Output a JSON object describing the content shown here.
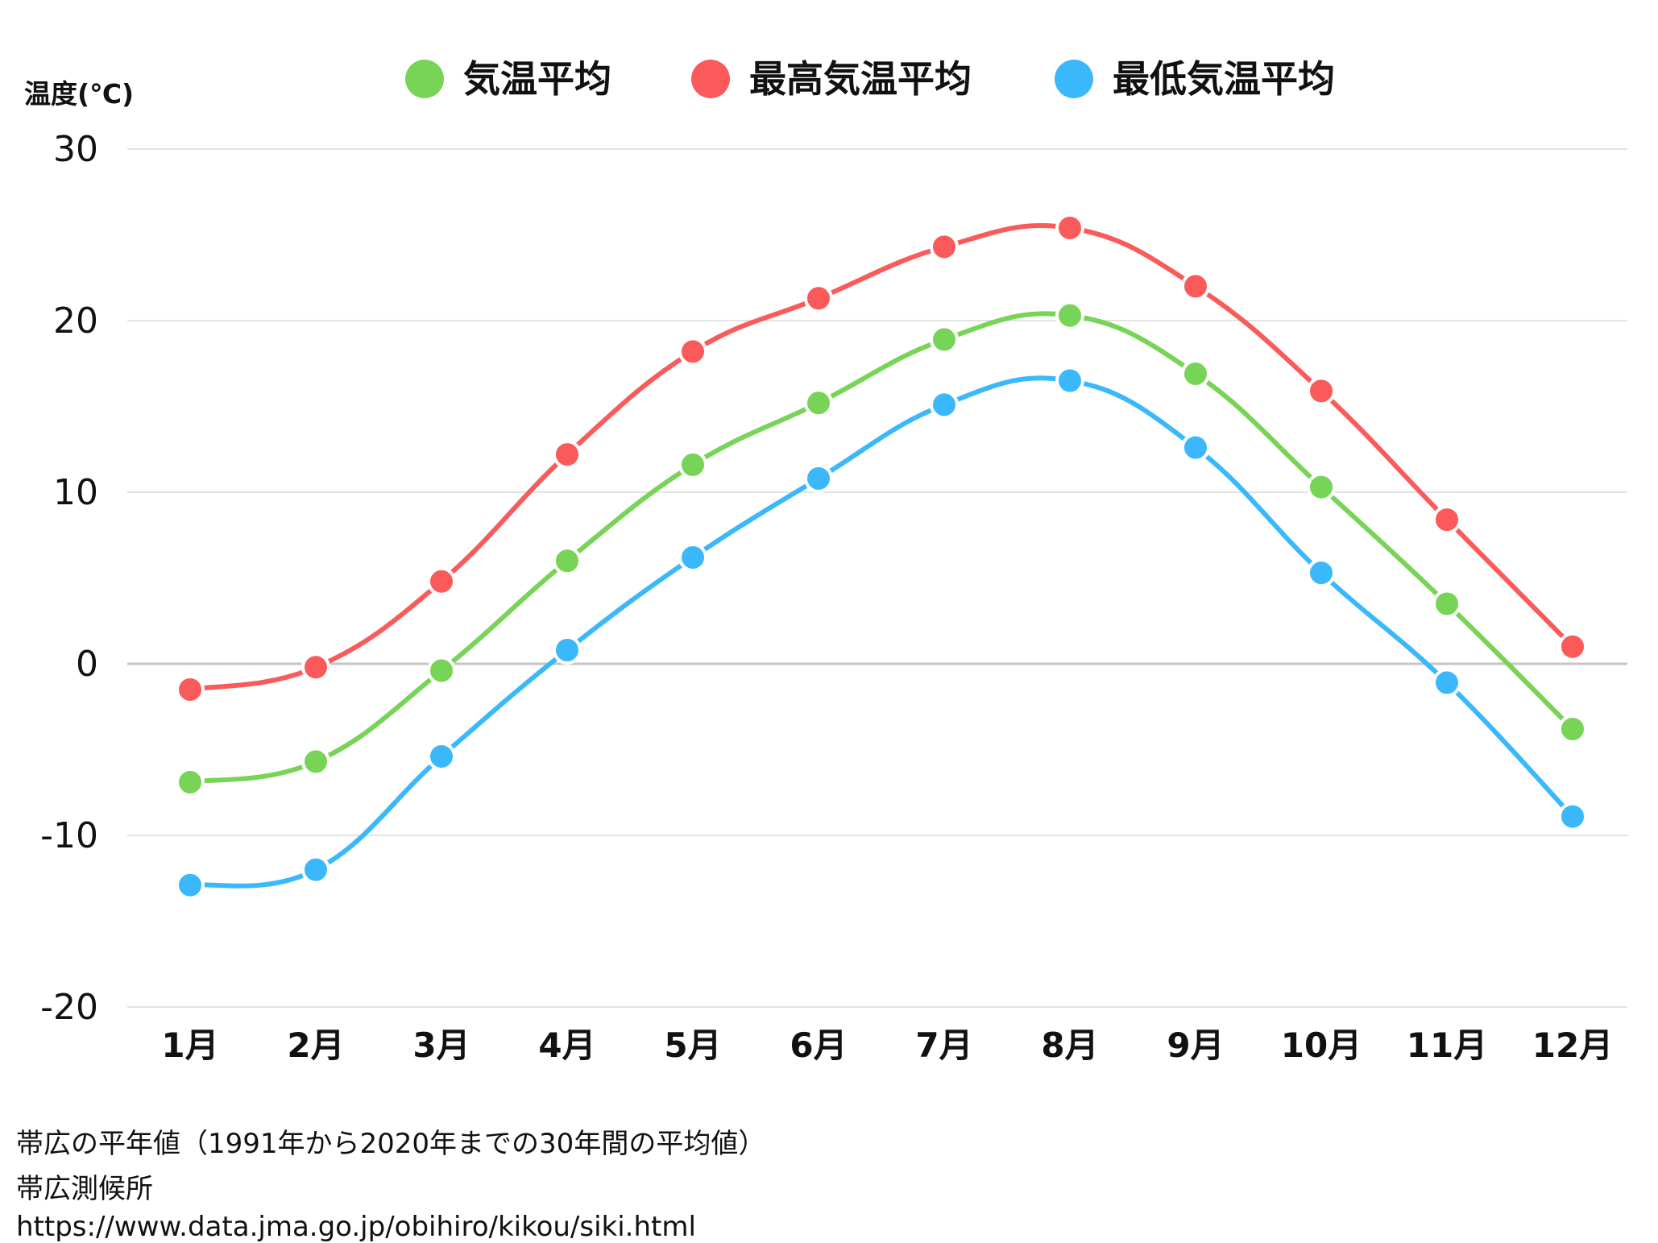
{
  "chart_data": {
    "type": "line",
    "categories": [
      "1月",
      "2月",
      "3月",
      "4月",
      "5月",
      "6月",
      "7月",
      "8月",
      "9月",
      "10月",
      "11月",
      "12月"
    ],
    "series": [
      {
        "name": "気温平均",
        "color": "#77d456",
        "values": [
          -6.9,
          -5.7,
          -0.4,
          6.0,
          11.6,
          15.2,
          18.9,
          20.3,
          16.9,
          10.3,
          3.5,
          -3.8
        ]
      },
      {
        "name": "最高気温平均",
        "color": "#fa5a5a",
        "values": [
          -1.5,
          -0.2,
          4.8,
          12.2,
          18.2,
          21.3,
          24.3,
          25.4,
          22.0,
          15.9,
          8.4,
          1.0
        ]
      },
      {
        "name": "最低気温平均",
        "color": "#3bb8fb",
        "values": [
          -12.9,
          -12.0,
          -5.4,
          0.8,
          6.2,
          10.8,
          15.1,
          16.5,
          12.6,
          5.3,
          -1.1,
          -8.9
        ]
      }
    ],
    "ylabel": "温度(℃)",
    "ylim": [
      -20,
      30
    ],
    "yticks": [
      30,
      20,
      10,
      0,
      -10,
      -20
    ],
    "grid": true,
    "legend_position": "top"
  },
  "captions": {
    "line1": "帯広の平年値（1991年から2020年までの30年間の平均値）",
    "line2": "帯広測候所",
    "line3": "https://www.data.jma.go.jp/obihiro/kikou/siki.html"
  }
}
